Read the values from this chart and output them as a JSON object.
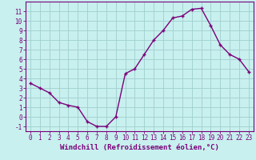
{
  "x": [
    0,
    1,
    2,
    3,
    4,
    5,
    6,
    7,
    8,
    9,
    10,
    11,
    12,
    13,
    14,
    15,
    16,
    17,
    18,
    19,
    20,
    21,
    22,
    23
  ],
  "y": [
    3.5,
    3.0,
    2.5,
    1.5,
    1.2,
    1.0,
    -0.5,
    -1.0,
    -1.0,
    0.0,
    4.5,
    5.0,
    6.5,
    8.0,
    9.0,
    10.3,
    10.5,
    11.2,
    11.3,
    9.5,
    7.5,
    6.5,
    6.0,
    4.7
  ],
  "line_color": "#7b007b",
  "marker": "+",
  "marker_size": 3,
  "bg_color": "#c8f0ee",
  "grid_color": "#a0cece",
  "xlabel": "Windchill (Refroidissement éolien,°C)",
  "xlim": [
    -0.5,
    23.5
  ],
  "ylim": [
    -1.5,
    12.0
  ],
  "yticks": [
    -1,
    0,
    1,
    2,
    3,
    4,
    5,
    6,
    7,
    8,
    9,
    10,
    11
  ],
  "xticks": [
    0,
    1,
    2,
    3,
    4,
    5,
    6,
    7,
    8,
    9,
    10,
    11,
    12,
    13,
    14,
    15,
    16,
    17,
    18,
    19,
    20,
    21,
    22,
    23
  ],
  "tick_color": "#7b007b",
  "tick_fontsize": 5.5,
  "xlabel_fontsize": 6.5,
  "line_width": 1.0,
  "spine_color": "#7b007b"
}
